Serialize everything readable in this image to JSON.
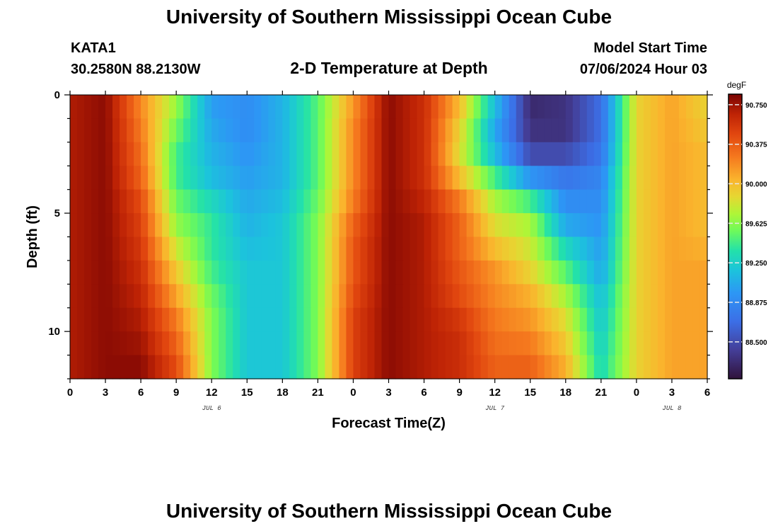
{
  "header": {
    "title": "University of Southern Mississippi Ocean Cube",
    "station": "KATA1",
    "coords": "30.2580N  88.2130W",
    "subtitle": "2-D Temperature at Depth",
    "model_label": "Model Start Time",
    "model_time": "07/06/2024 Hour 03"
  },
  "footer": {
    "title": "University of Southern Mississippi Ocean Cube"
  },
  "chart_data": {
    "type": "heatmap",
    "xlabel": "Forecast Time(Z)",
    "ylabel": "Depth (ft)",
    "x_range_hours": [
      0,
      54
    ],
    "y_range_ft": [
      0,
      12
    ],
    "y_inverted": true,
    "x_tick_labels": [
      "0",
      "3",
      "6",
      "9",
      "12",
      "15",
      "18",
      "21",
      "0",
      "3",
      "6",
      "9",
      "12",
      "15",
      "18",
      "21",
      "0",
      "3",
      "6"
    ],
    "y_ticks": [
      0,
      5,
      10
    ],
    "date_labels": [
      {
        "hour": 12,
        "label": "JUL 6"
      },
      {
        "hour": 36,
        "label": "JUL 7"
      },
      {
        "hour": 51,
        "label": "JUL 8"
      }
    ],
    "colorbar": {
      "unit": "degF",
      "min": 88.15,
      "max": 90.85,
      "ticks": [
        "88.500",
        "88.875",
        "89.250",
        "89.625",
        "90.000",
        "90.375",
        "90.750"
      ],
      "tick_values": [
        88.5,
        88.875,
        89.25,
        89.625,
        90.0,
        90.375,
        90.75
      ]
    },
    "depth_levels_ft": [
      0,
      1,
      2,
      3,
      4,
      5,
      6,
      7,
      8,
      9,
      10,
      11,
      12
    ],
    "hours": [
      0,
      3,
      6,
      9,
      12,
      15,
      18,
      21,
      24,
      27,
      30,
      33,
      36,
      39,
      42,
      45,
      48,
      51,
      54
    ],
    "temperature_degF": [
      [
        90.7,
        90.8,
        90.2,
        89.7,
        89.0,
        88.9,
        89.1,
        89.5,
        90.1,
        90.8,
        90.6,
        90.0,
        89.2,
        88.3,
        88.4,
        88.7,
        89.9,
        90.1,
        89.9
      ],
      [
        90.7,
        90.8,
        90.2,
        89.6,
        89.0,
        88.9,
        89.1,
        89.5,
        90.2,
        90.8,
        90.6,
        90.0,
        89.1,
        88.3,
        88.3,
        88.7,
        89.9,
        90.1,
        89.9
      ],
      [
        90.7,
        90.8,
        90.3,
        89.5,
        89.1,
        88.9,
        89.1,
        89.5,
        90.2,
        90.8,
        90.6,
        89.8,
        89.0,
        88.4,
        88.4,
        88.7,
        89.9,
        90.1,
        90.0
      ],
      [
        90.7,
        90.8,
        90.3,
        89.4,
        89.1,
        89.0,
        89.1,
        89.5,
        90.2,
        90.8,
        90.6,
        89.9,
        89.3,
        88.6,
        88.6,
        88.8,
        89.9,
        90.1,
        90.0
      ],
      [
        90.7,
        90.8,
        90.4,
        89.5,
        89.2,
        89.0,
        89.1,
        89.5,
        90.2,
        90.8,
        90.6,
        90.1,
        89.6,
        89.3,
        88.9,
        88.9,
        89.9,
        90.1,
        90.0
      ],
      [
        90.7,
        90.8,
        90.5,
        89.6,
        89.4,
        89.1,
        89.2,
        89.6,
        90.3,
        90.8,
        90.7,
        90.4,
        89.8,
        89.6,
        88.9,
        88.9,
        89.9,
        90.1,
        90.0
      ],
      [
        90.7,
        90.8,
        90.5,
        89.7,
        89.4,
        89.1,
        89.2,
        89.6,
        90.4,
        90.8,
        90.7,
        90.3,
        89.9,
        89.8,
        89.2,
        89.0,
        89.9,
        90.1,
        90.0
      ],
      [
        90.7,
        90.8,
        90.6,
        89.9,
        89.4,
        89.2,
        89.2,
        89.6,
        90.4,
        90.8,
        90.7,
        90.4,
        90.1,
        89.8,
        89.4,
        89.0,
        89.9,
        90.1,
        90.1
      ],
      [
        90.7,
        90.8,
        90.6,
        90.0,
        89.5,
        89.2,
        89.2,
        89.6,
        90.4,
        90.8,
        90.7,
        90.4,
        90.2,
        90.0,
        89.6,
        89.1,
        89.9,
        90.1,
        90.1
      ],
      [
        90.7,
        90.8,
        90.7,
        90.2,
        89.6,
        89.2,
        89.2,
        89.6,
        90.5,
        90.8,
        90.7,
        90.5,
        90.2,
        90.1,
        89.8,
        89.2,
        89.9,
        90.1,
        90.1
      ],
      [
        90.7,
        90.8,
        90.7,
        90.3,
        89.6,
        89.2,
        89.2,
        89.6,
        90.5,
        90.8,
        90.7,
        90.6,
        90.3,
        90.2,
        89.9,
        89.2,
        89.9,
        90.1,
        90.1
      ],
      [
        90.7,
        90.8,
        90.8,
        90.4,
        89.6,
        89.2,
        89.2,
        89.6,
        90.5,
        90.8,
        90.7,
        90.6,
        90.3,
        90.3,
        90.0,
        89.3,
        89.9,
        90.1,
        90.1
      ],
      [
        90.7,
        90.8,
        90.8,
        90.5,
        89.6,
        89.2,
        89.2,
        89.6,
        90.5,
        90.8,
        90.7,
        90.6,
        90.4,
        90.4,
        90.1,
        89.3,
        89.9,
        90.1,
        90.1
      ]
    ]
  }
}
